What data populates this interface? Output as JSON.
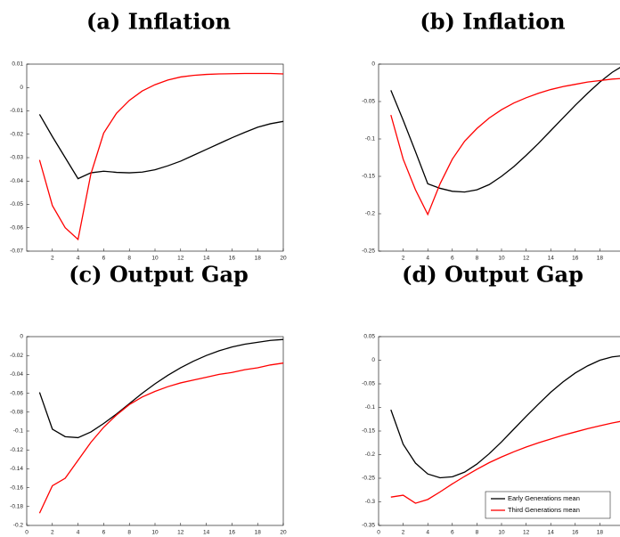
{
  "chart_data": [
    {
      "type": "line",
      "title": "(a) Inflation",
      "x": [
        1,
        2,
        3,
        4,
        5,
        6,
        7,
        8,
        9,
        10,
        11,
        12,
        13,
        14,
        15,
        16,
        17,
        18,
        19,
        20
      ],
      "xlim": [
        0,
        20
      ],
      "xticks": [
        2,
        4,
        6,
        8,
        10,
        12,
        14,
        16,
        18,
        20
      ],
      "ylim": [
        -0.07,
        0.01
      ],
      "yticks": [
        -0.07,
        -0.06,
        -0.05,
        -0.04,
        -0.03,
        -0.02,
        -0.01,
        0,
        0.01
      ],
      "series": [
        {
          "color": "#000000",
          "values": [
            -0.0115,
            -0.021,
            -0.03,
            -0.039,
            -0.0365,
            -0.0358,
            -0.0363,
            -0.0365,
            -0.0362,
            -0.0352,
            -0.0335,
            -0.0315,
            -0.029,
            -0.0265,
            -0.024,
            -0.0215,
            -0.0192,
            -0.017,
            -0.0155,
            -0.0145
          ]
        },
        {
          "color": "#ff0000",
          "values": [
            -0.031,
            -0.0505,
            -0.06,
            -0.065,
            -0.037,
            -0.0195,
            -0.011,
            -0.0055,
            -0.0015,
            0.0012,
            0.0032,
            0.0045,
            0.0052,
            0.0056,
            0.0058,
            0.0059,
            0.006,
            0.006,
            0.006,
            0.0058
          ]
        }
      ]
    },
    {
      "type": "line",
      "title": "(b) Inflation",
      "x": [
        1,
        2,
        3,
        4,
        5,
        6,
        7,
        8,
        9,
        10,
        11,
        12,
        13,
        14,
        15,
        16,
        17,
        18,
        19,
        20
      ],
      "xlim": [
        0,
        20
      ],
      "xticks": [
        2,
        4,
        6,
        8,
        10,
        12,
        14,
        16,
        18
      ],
      "ylim": [
        -0.25,
        0
      ],
      "yticks": [
        -0.25,
        -0.2,
        -0.15,
        -0.1,
        -0.05,
        0
      ],
      "series": [
        {
          "color": "#000000",
          "values": [
            -0.035,
            -0.075,
            -0.117,
            -0.16,
            -0.166,
            -0.17,
            -0.171,
            -0.168,
            -0.161,
            -0.15,
            -0.137,
            -0.122,
            -0.106,
            -0.089,
            -0.072,
            -0.055,
            -0.039,
            -0.024,
            -0.011,
            -0.001
          ]
        },
        {
          "color": "#ff0000",
          "values": [
            -0.068,
            -0.127,
            -0.168,
            -0.201,
            -0.16,
            -0.127,
            -0.103,
            -0.086,
            -0.072,
            -0.061,
            -0.052,
            -0.045,
            -0.039,
            -0.034,
            -0.03,
            -0.027,
            -0.024,
            -0.022,
            -0.02,
            -0.019
          ]
        }
      ]
    },
    {
      "type": "line",
      "title": "(c) Output Gap",
      "x": [
        1,
        2,
        3,
        4,
        5,
        6,
        7,
        8,
        9,
        10,
        11,
        12,
        13,
        14,
        15,
        16,
        17,
        18,
        19,
        20
      ],
      "xlim": [
        0,
        20
      ],
      "xticks": [
        0,
        2,
        4,
        6,
        8,
        10,
        12,
        14,
        16,
        18,
        20
      ],
      "ylim": [
        -0.2,
        0
      ],
      "yticks": [
        -0.2,
        -0.18,
        -0.16,
        -0.14,
        -0.12,
        -0.1,
        -0.08,
        -0.06,
        -0.04,
        -0.02,
        0
      ],
      "series": [
        {
          "color": "#000000",
          "values": [
            -0.059,
            -0.098,
            -0.106,
            -0.107,
            -0.101,
            -0.092,
            -0.082,
            -0.071,
            -0.06,
            -0.05,
            -0.041,
            -0.033,
            -0.026,
            -0.02,
            -0.015,
            -0.011,
            -0.008,
            -0.006,
            -0.004,
            -0.003
          ]
        },
        {
          "color": "#ff0000",
          "values": [
            -0.187,
            -0.158,
            -0.15,
            -0.131,
            -0.112,
            -0.096,
            -0.083,
            -0.072,
            -0.064,
            -0.058,
            -0.053,
            -0.049,
            -0.046,
            -0.043,
            -0.04,
            -0.038,
            -0.035,
            -0.033,
            -0.03,
            -0.028
          ]
        }
      ]
    },
    {
      "type": "line",
      "title": "(d) Output Gap",
      "x": [
        1,
        2,
        3,
        4,
        5,
        6,
        7,
        8,
        9,
        10,
        11,
        12,
        13,
        14,
        15,
        16,
        17,
        18,
        19,
        20
      ],
      "xlim": [
        0,
        20
      ],
      "xticks": [
        0,
        2,
        4,
        6,
        8,
        10,
        12,
        14,
        16,
        18
      ],
      "ylim": [
        -0.35,
        0.05
      ],
      "yticks": [
        -0.35,
        -0.3,
        -0.25,
        -0.2,
        -0.15,
        -0.1,
        -0.05,
        0,
        0.05
      ],
      "legend": "lower right",
      "series": [
        {
          "name": "Early Generations mean",
          "color": "#000000",
          "values": [
            -0.105,
            -0.178,
            -0.218,
            -0.241,
            -0.249,
            -0.247,
            -0.237,
            -0.22,
            -0.198,
            -0.173,
            -0.146,
            -0.119,
            -0.093,
            -0.068,
            -0.046,
            -0.027,
            -0.012,
            0.0,
            0.007,
            0.01
          ]
        },
        {
          "name": "Third Generations mean",
          "color": "#ff0000",
          "values": [
            -0.29,
            -0.286,
            -0.303,
            -0.295,
            -0.279,
            -0.262,
            -0.246,
            -0.231,
            -0.217,
            -0.205,
            -0.194,
            -0.184,
            -0.175,
            -0.167,
            -0.159,
            -0.152,
            -0.145,
            -0.139,
            -0.133,
            -0.128
          ]
        }
      ]
    }
  ]
}
